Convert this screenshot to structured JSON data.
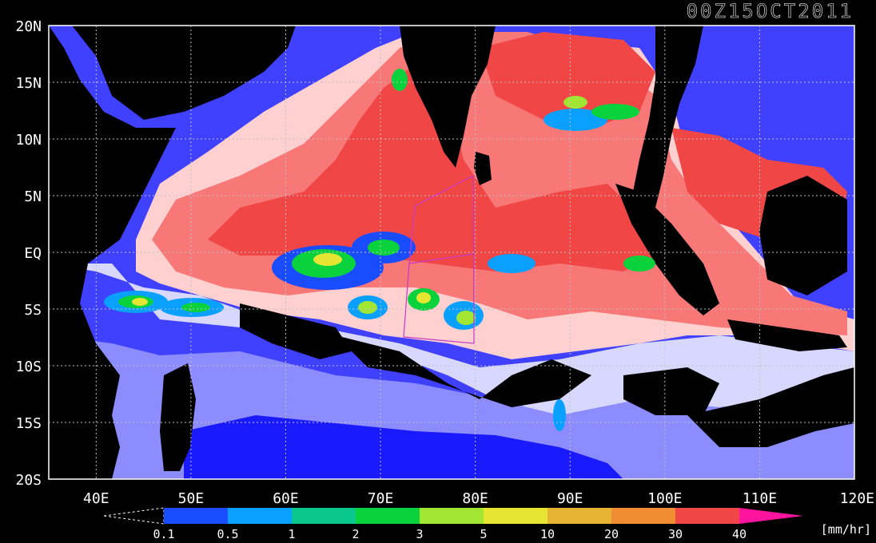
{
  "title": "00Z15OCT2011",
  "lat_labels": [
    "20N",
    "15N",
    "10N",
    "5N",
    "EQ",
    "5S",
    "10S",
    "15S",
    "20S"
  ],
  "lon_labels": [
    "40E",
    "50E",
    "60E",
    "70E",
    "80E",
    "90E",
    "100E",
    "110E",
    "120E"
  ],
  "colorbar": {
    "ticks": [
      "0.1",
      "0.5",
      "1",
      "2",
      "3",
      "5",
      "10",
      "20",
      "30",
      "40"
    ],
    "unit": "[mm/hr]",
    "colors": [
      "#1a4cff",
      "#0aa0ff",
      "#0ac88c",
      "#0ad23c",
      "#a0e632",
      "#e6e632",
      "#e6b432",
      "#f08c32",
      "#f04646",
      "#ff14a0"
    ]
  },
  "map_colors": {
    "land": "#000000",
    "ocean_hot": "#f04646",
    "ocean_warm": "#f87878",
    "ocean_mild": "#ffd0d0",
    "ocean_cool": "#d8d8ff",
    "ocean_cold1": "#8c8cff",
    "ocean_cold2": "#4040ff",
    "ocean_cold3": "#1a1aff",
    "box": "#c838c8",
    "grid": "#c0c0c0"
  }
}
